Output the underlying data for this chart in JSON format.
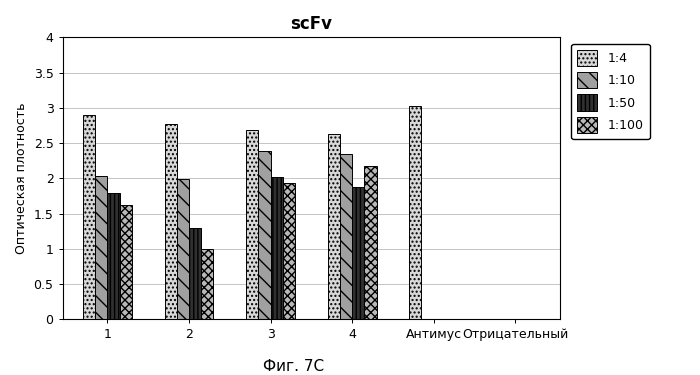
{
  "title": "scFv",
  "ylabel": "Оптическая плотность",
  "categories": [
    "1",
    "2",
    "3",
    "4",
    "Антимус",
    "Отрицательный"
  ],
  "series": {
    "1:4": [
      2.9,
      2.77,
      2.68,
      2.63,
      3.02,
      0.01
    ],
    "1:10": [
      2.03,
      1.99,
      2.38,
      2.35,
      0.0,
      0.0
    ],
    "1:50": [
      1.79,
      1.3,
      2.02,
      1.88,
      0.0,
      0.0
    ],
    "1:100": [
      1.62,
      1.0,
      1.93,
      2.18,
      0.0,
      0.0
    ]
  },
  "legend_labels": [
    "1:4",
    "1:10",
    "1:50",
    "1:100"
  ],
  "ylim": [
    0,
    4
  ],
  "yticks": [
    0,
    0.5,
    1.0,
    1.5,
    2.0,
    2.5,
    3.0,
    3.5,
    4.0
  ],
  "caption": "Фиг. 7С",
  "bg_color": "#ffffff",
  "bar_width": 0.15,
  "colors": [
    "#d8d8d8",
    "#a0a0a0",
    "#303030",
    "#b8b8b8"
  ],
  "patterns": [
    "..",
    "\\\\\\\\",
    "||||",
    "++"
  ],
  "edge_color": "#000000"
}
